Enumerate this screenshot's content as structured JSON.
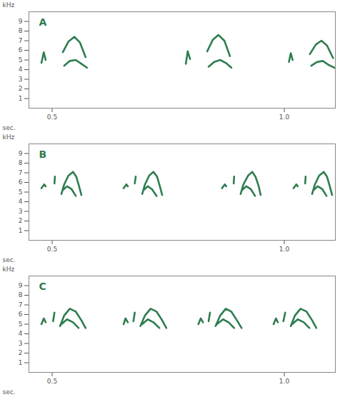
{
  "chart_data": [
    {
      "type": "line",
      "title": "A",
      "x_label": "sec.",
      "y_label": "kHz",
      "color": "#2e7d4f",
      "xlim": [
        0.45,
        1.11
      ],
      "ylim": [
        0,
        10
      ],
      "xticks": [
        0.5,
        {
          "value": 1,
          "label": "1.0"
        }
      ],
      "yticks": [
        1,
        2,
        3,
        4,
        5,
        6,
        7,
        8,
        9
      ],
      "x": [
        0.477,
        0.482,
        0.486,
        null,
        0.523,
        0.535,
        0.548,
        0.56,
        0.572,
        null,
        0.526,
        0.538,
        0.551,
        0.563,
        0.575,
        null,
        0.788,
        0.792,
        0.797,
        null,
        0.834,
        0.846,
        0.858,
        0.871,
        0.883,
        null,
        0.837,
        0.849,
        0.862,
        0.874,
        0.886,
        null,
        1.01,
        1.014,
        1.018,
        null,
        1.055,
        1.068,
        1.08,
        1.092,
        1.105,
        null,
        1.058,
        1.071,
        1.083,
        1.095,
        1.108
      ],
      "values": [
        4.7,
        5.8,
        5.0,
        null,
        5.8,
        6.9,
        7.4,
        6.8,
        5.3,
        null,
        4.4,
        4.9,
        5.0,
        4.6,
        4.2,
        null,
        4.6,
        5.9,
        5.1,
        null,
        5.9,
        7.1,
        7.6,
        7.0,
        5.4,
        null,
        4.3,
        4.8,
        5.0,
        4.7,
        4.2,
        null,
        4.8,
        5.7,
        5.0,
        null,
        5.6,
        6.6,
        7.0,
        6.5,
        5.2,
        null,
        4.4,
        4.8,
        4.9,
        4.5,
        4.2
      ]
    },
    {
      "type": "line",
      "title": "B",
      "x_label": "sec.",
      "y_label": "kHz",
      "color": "#2e7d4f",
      "xlim": [
        0.45,
        1.11
      ],
      "ylim": [
        0,
        10
      ],
      "xticks": [
        0.5,
        {
          "value": 1,
          "label": "1.0"
        }
      ],
      "yticks": [
        1,
        2,
        3,
        4,
        5,
        6,
        7,
        8,
        9
      ],
      "x": [
        0.477,
        0.483,
        0.486,
        null,
        0.505,
        0.506,
        null,
        0.52,
        0.526,
        0.535,
        0.545,
        0.552,
        0.558,
        0.563,
        null,
        0.523,
        0.532,
        0.542,
        0.551,
        null,
        0.654,
        0.66,
        0.663,
        null,
        0.678,
        0.68,
        null,
        0.694,
        0.7,
        0.709,
        0.718,
        0.726,
        0.732,
        0.737,
        null,
        0.697,
        0.706,
        0.715,
        0.725,
        null,
        0.866,
        0.872,
        0.875,
        null,
        0.891,
        0.892,
        null,
        0.906,
        0.912,
        0.922,
        0.931,
        0.938,
        0.945,
        0.949,
        null,
        0.909,
        0.918,
        0.928,
        0.937,
        null,
        1.02,
        1.026,
        1.029,
        null,
        1.045,
        1.046,
        null,
        1.06,
        1.066,
        1.075,
        1.085,
        1.092,
        1.098,
        1.103,
        null,
        1.063,
        1.072,
        1.082,
        1.091
      ],
      "values": [
        5.4,
        5.8,
        5.6,
        null,
        5.9,
        6.6,
        null,
        4.8,
        5.8,
        6.7,
        7.1,
        6.6,
        5.6,
        4.7,
        null,
        5.2,
        5.6,
        5.3,
        4.6,
        null,
        5.4,
        5.8,
        5.6,
        null,
        5.9,
        6.6,
        null,
        4.8,
        5.8,
        6.7,
        7.1,
        6.6,
        5.6,
        4.7,
        null,
        5.2,
        5.6,
        5.3,
        4.6,
        null,
        5.4,
        5.8,
        5.6,
        null,
        5.9,
        6.6,
        null,
        4.8,
        5.8,
        6.7,
        7.1,
        6.6,
        5.6,
        4.7,
        null,
        5.2,
        5.6,
        5.3,
        4.6,
        null,
        5.4,
        5.8,
        5.6,
        null,
        5.9,
        6.6,
        null,
        4.8,
        5.8,
        6.7,
        7.1,
        6.6,
        5.6,
        4.7,
        null,
        5.2,
        5.6,
        5.3,
        4.6
      ]
    },
    {
      "type": "line",
      "title": "C",
      "x_label": "sec.",
      "y_label": "kHz",
      "color": "#2e7d4f",
      "xlim": [
        0.45,
        1.11
      ],
      "ylim": [
        0,
        10
      ],
      "xticks": [
        0.5,
        {
          "value": 1,
          "label": "1.0"
        }
      ],
      "yticks": [
        1,
        2,
        3,
        4,
        5,
        6,
        7,
        8,
        9
      ],
      "x": [
        0.477,
        0.482,
        0.486,
        null,
        0.502,
        0.505,
        null,
        0.517,
        0.526,
        0.538,
        0.551,
        0.563,
        0.572,
        null,
        0.52,
        0.532,
        0.545,
        0.557,
        null,
        0.654,
        0.658,
        0.663,
        null,
        0.675,
        0.678,
        null,
        0.69,
        0.7,
        0.712,
        0.725,
        0.737,
        0.746,
        null,
        0.694,
        0.706,
        0.718,
        0.731,
        null,
        0.815,
        0.82,
        0.825,
        null,
        0.837,
        0.84,
        null,
        0.852,
        0.862,
        0.874,
        0.886,
        0.898,
        0.908,
        null,
        0.855,
        0.868,
        0.88,
        0.892,
        null,
        0.977,
        0.982,
        0.986,
        null,
        0.998,
        1.002,
        null,
        1.014,
        1.023,
        1.035,
        1.048,
        1.06,
        1.069,
        null,
        1.017,
        1.029,
        1.042,
        1.054
      ],
      "values": [
        5.0,
        5.6,
        5.2,
        null,
        5.3,
        6.2,
        null,
        4.8,
        5.9,
        6.6,
        6.3,
        5.4,
        4.6,
        null,
        5.0,
        5.5,
        5.2,
        4.6,
        null,
        5.0,
        5.6,
        5.2,
        null,
        5.3,
        6.2,
        null,
        4.8,
        5.9,
        6.6,
        6.3,
        5.4,
        4.6,
        null,
        5.0,
        5.5,
        5.2,
        4.6,
        null,
        5.0,
        5.6,
        5.2,
        null,
        5.3,
        6.2,
        null,
        4.8,
        5.9,
        6.6,
        6.3,
        5.4,
        4.6,
        null,
        5.0,
        5.5,
        5.2,
        4.6,
        null,
        5.0,
        5.6,
        5.2,
        null,
        5.3,
        6.2,
        null,
        4.8,
        5.9,
        6.6,
        6.3,
        5.4,
        4.6,
        null,
        5.0,
        5.5,
        5.2,
        4.6
      ]
    }
  ]
}
